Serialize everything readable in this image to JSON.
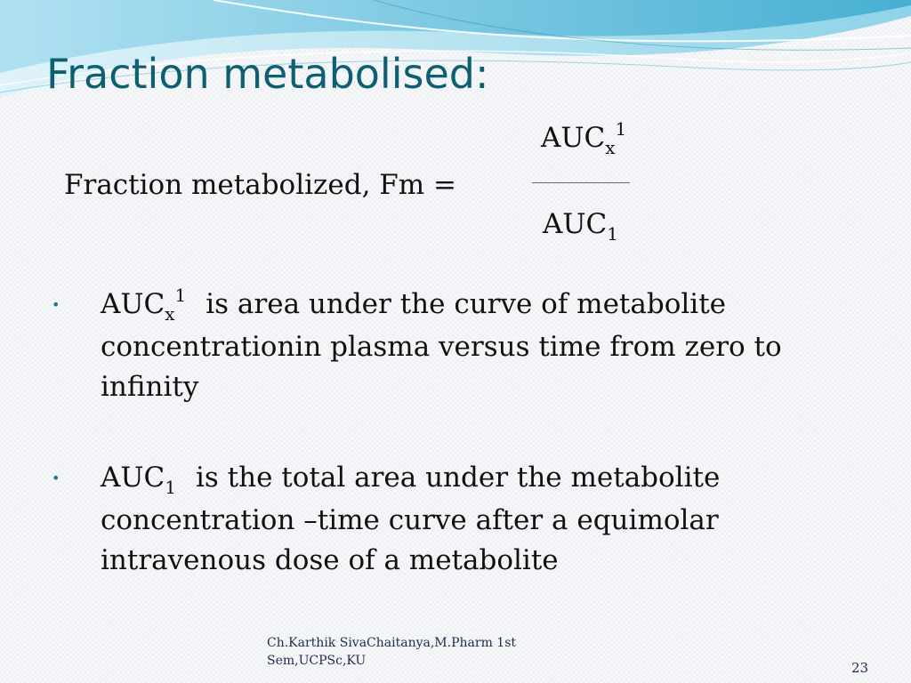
{
  "slide": {
    "title": "Fraction metabolised:",
    "formula": {
      "lhs": "Fraction metabolized, Fm =",
      "numerator": {
        "base": "AUC",
        "subscript": "x",
        "superscript": "1"
      },
      "denominator": {
        "base": "AUC",
        "subscript": "1"
      }
    },
    "bullets": [
      {
        "marker": "•",
        "term": {
          "base": "AUC",
          "subscript": "x",
          "superscript": "1"
        },
        "text": "is area under the curve of metabolite concentrationin plasma versus time from zero to infinity"
      },
      {
        "marker": "•",
        "term": {
          "base": "AUC",
          "subscript": "1"
        },
        "text": "is the total area under the metabolite concentration –time curve after a equimolar intravenous dose of a metabolite"
      }
    ],
    "footer": {
      "author_line1": "Ch.Karthik SivaChaitanya,M.Pharm 1st",
      "author_line2": "Sem,UCPSc,KU"
    },
    "page_number": "23"
  },
  "colors": {
    "title": "#0f5f72",
    "bullet": "#1a7890",
    "wave_light": "#b5e6f3",
    "wave_mid": "#5bbfdb",
    "wave_dark": "#2a93b8"
  }
}
